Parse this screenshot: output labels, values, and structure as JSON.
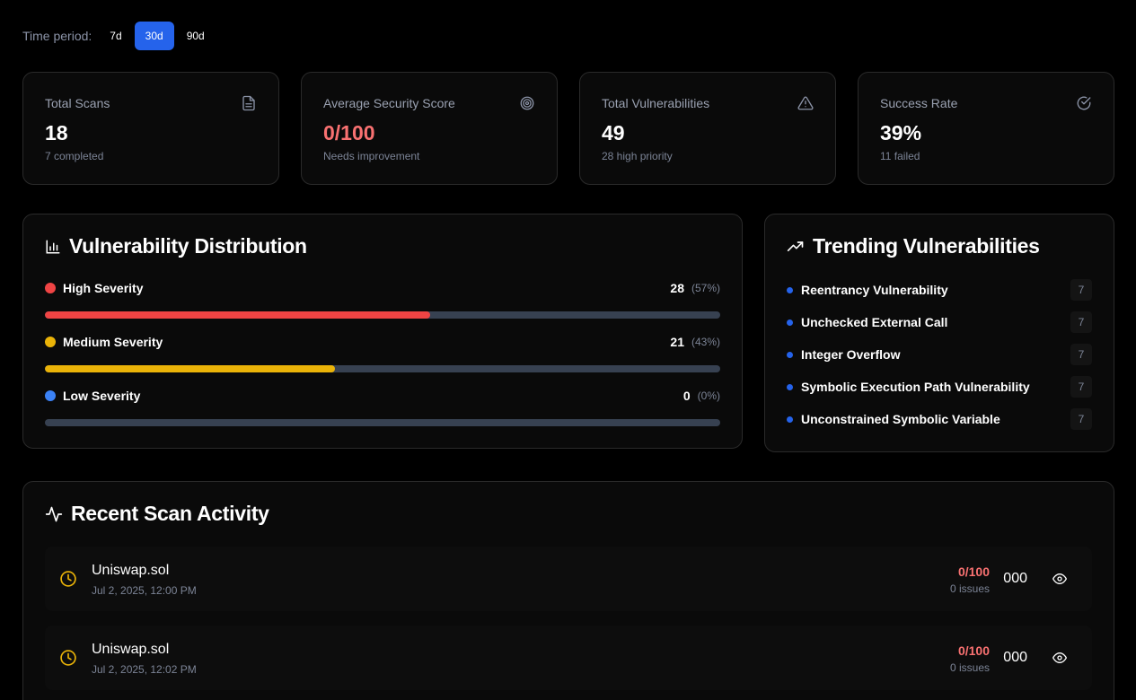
{
  "period": {
    "label": "Time period:",
    "options": [
      "7d",
      "30d",
      "90d"
    ],
    "selected": "30d"
  },
  "stats": [
    {
      "label": "Total Scans",
      "value": "18",
      "sub": "7 completed",
      "icon": "file-icon"
    },
    {
      "label": "Average Security Score",
      "value": "0/100",
      "sub": "Needs improvement",
      "icon": "target-icon"
    },
    {
      "label": "Total Vulnerabilities",
      "value": "49",
      "sub": "28 high priority",
      "icon": "warning-icon"
    },
    {
      "label": "Success Rate",
      "value": "39%",
      "sub": "11 failed",
      "icon": "check-circle-icon"
    }
  ],
  "distribution": {
    "title": "Vulnerability Distribution",
    "items": [
      {
        "label": "High Severity",
        "count": "28",
        "pct": "(57%)",
        "fraction": 0.57,
        "color": "#ef4444"
      },
      {
        "label": "Medium Severity",
        "count": "21",
        "pct": "(43%)",
        "fraction": 0.43,
        "color": "#eab308"
      },
      {
        "label": "Low Severity",
        "count": "0",
        "pct": "(0%)",
        "fraction": 0,
        "color": "#3b82f6"
      }
    ]
  },
  "trending": {
    "title": "Trending Vulnerabilities",
    "items": [
      {
        "name": "Reentrancy Vulnerability",
        "count": "7"
      },
      {
        "name": "Unchecked External Call",
        "count": "7"
      },
      {
        "name": "Integer Overflow",
        "count": "7"
      },
      {
        "name": "Symbolic Execution Path Vulnerability",
        "count": "7"
      },
      {
        "name": "Unconstrained Symbolic Variable",
        "count": "7"
      }
    ]
  },
  "activity": {
    "title": "Recent Scan Activity",
    "items": [
      {
        "name": "Uniswap.sol",
        "date": "Jul 2, 2025, 12:00 PM",
        "score": "0/100",
        "issues": "0 issues",
        "code": "000"
      },
      {
        "name": "Uniswap.sol",
        "date": "Jul 2, 2025, 12:02 PM",
        "score": "0/100",
        "issues": "0 issues",
        "code": "000"
      }
    ]
  },
  "colors": {
    "accent": "#2563eb",
    "danger": "#f87171",
    "warning_icon": "#eab308"
  }
}
